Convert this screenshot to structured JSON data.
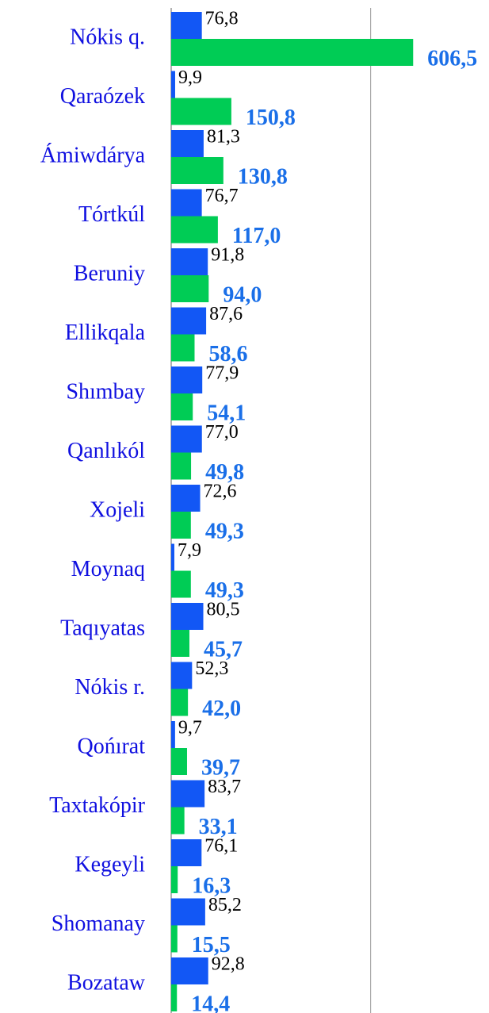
{
  "chart_data": {
    "type": "bar",
    "orientation": "horizontal",
    "categories": [
      "Nókis q.",
      "Qaraózek",
      "Ámiwdárya",
      "Tórtkúl",
      "Beruniy",
      "Ellikqala",
      "Shımbay",
      "Qanlıkól",
      "Xojeli",
      "Moynaq",
      "Taqıyatas",
      "Nókis r.",
      "Qońırat",
      "Taxtakópir",
      "Kegeyli",
      "Shomanay",
      "Bozataw"
    ],
    "series": [
      {
        "color": "#1257f5",
        "values": [
          76.8,
          9.9,
          81.3,
          76.7,
          91.8,
          87.6,
          77.9,
          77.0,
          72.6,
          7.9,
          80.5,
          52.3,
          9.7,
          83.7,
          76.1,
          85.2,
          92.8
        ],
        "value_labels": [
          "76,8",
          "9,9",
          "81,3",
          "76,7",
          "91,8",
          "87,6",
          "77,9",
          "77,0",
          "72,6",
          "7,9",
          "80,5",
          "52,3",
          "9,7",
          "83,7",
          "76,1",
          "85,2",
          "92,8"
        ]
      },
      {
        "color": "#00cc55",
        "values": [
          606.5,
          150.8,
          130.8,
          117.0,
          94.0,
          58.6,
          54.1,
          49.8,
          49.3,
          49.3,
          45.7,
          42.0,
          39.7,
          33.1,
          16.3,
          15.5,
          14.4
        ],
        "value_labels": [
          "606,5",
          "150,8",
          "130,8",
          "117,0",
          "94,0",
          "58,6",
          "54,1",
          "49,8",
          "49,3",
          "49,3",
          "45,7",
          "42,0",
          "39,7",
          "33,1",
          "16,3",
          "15,5",
          "14,4"
        ]
      }
    ],
    "xlim": [
      0,
      600
    ],
    "xticks": [
      0,
      500
    ],
    "tick_labels": false,
    "grid": true
  }
}
